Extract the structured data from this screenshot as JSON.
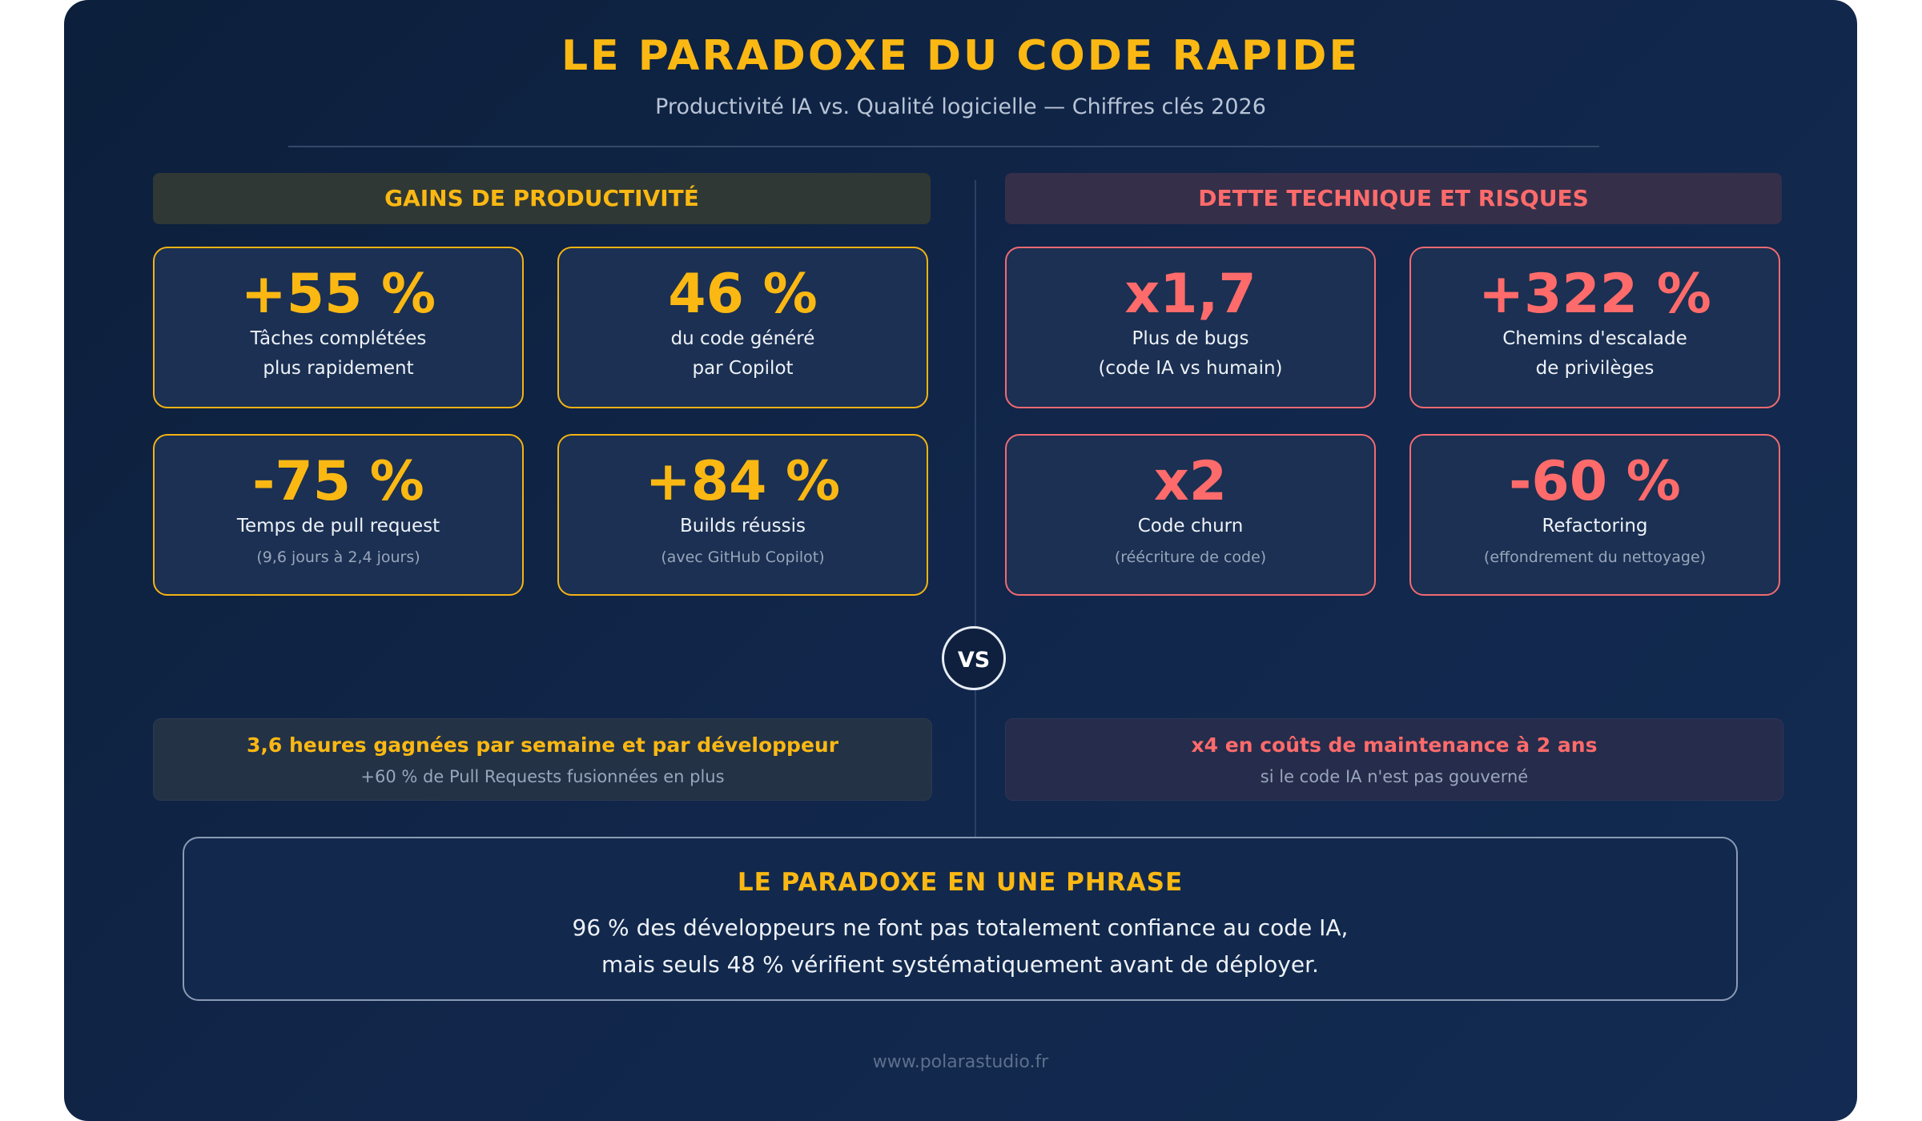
{
  "header": {
    "title": "LE PARADOXE DU CODE RAPIDE",
    "subtitle": "Productivité IA vs. Qualité logicielle — Chiffres clés 2026"
  },
  "colors": {
    "gains": "#fbb813",
    "risks": "#ff6b6b",
    "background": "#0f2445"
  },
  "gains": {
    "heading": "GAINS DE PRODUCTIVITÉ",
    "cards": [
      {
        "value": "+55 %",
        "line1": "Tâches complétées",
        "line2": "plus rapidement"
      },
      {
        "value": "46 %",
        "line1": "du code généré",
        "line2": "par Copilot"
      },
      {
        "value": "-75 %",
        "line1": "Temps de pull request",
        "note": "(9,6 jours à 2,4 jours)"
      },
      {
        "value": "+84 %",
        "line1": "Builds réussis",
        "note": "(avec GitHub Copilot)"
      }
    ],
    "summary": {
      "title": "3,6 heures gagnées par semaine et par développeur",
      "subtitle": "+60 % de Pull Requests fusionnées en plus"
    }
  },
  "risks": {
    "heading": "DETTE TECHNIQUE ET RISQUES",
    "cards": [
      {
        "value": "x1,7",
        "line1": "Plus de bugs",
        "line2": "(code IA vs humain)"
      },
      {
        "value": "+322 %",
        "line1": "Chemins d'escalade",
        "line2": "de privilèges"
      },
      {
        "value": "x2",
        "line1": "Code churn",
        "note": "(réécriture de code)"
      },
      {
        "value": "-60 %",
        "line1": "Refactoring",
        "note": "(effondrement du nettoyage)"
      }
    ],
    "summary": {
      "title": "x4 en coûts de maintenance à 2 ans",
      "subtitle": "si le code IA n'est pas gouverné"
    }
  },
  "vs_label": "VS",
  "phrase": {
    "title": "LE PARADOXE EN UNE PHRASE",
    "line1": "96 % des développeurs ne font pas totalement confiance au code IA,",
    "line2": "mais seuls 48 % vérifient systématiquement avant de déployer."
  },
  "footer": "www.polarastudio.fr"
}
